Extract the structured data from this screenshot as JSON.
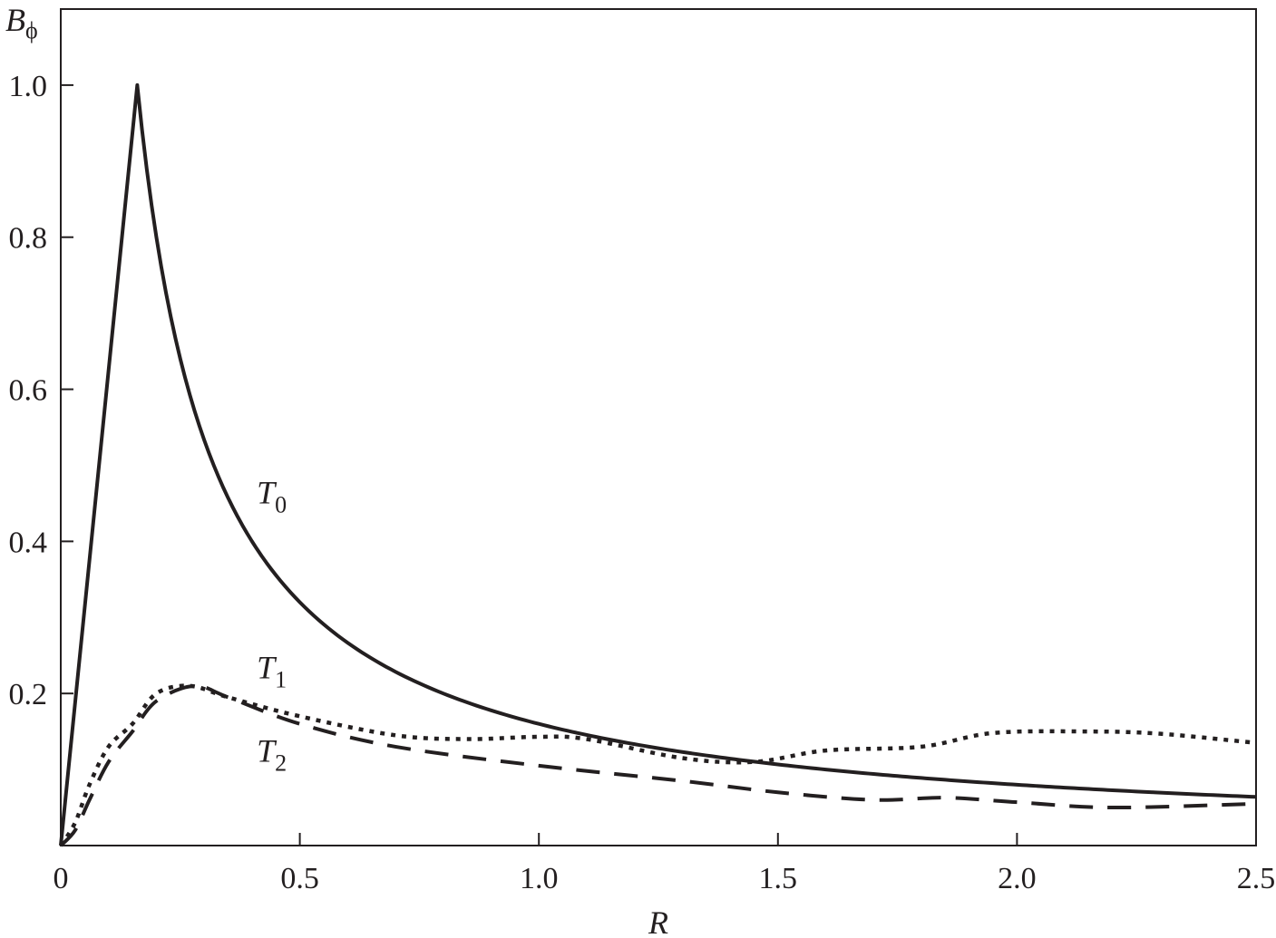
{
  "chart_data": {
    "type": "line",
    "title": "",
    "xlabel": "R",
    "ylabel": "B",
    "ylabel_subscript": "ϕ",
    "xlim": [
      0,
      2.5
    ],
    "ylim": [
      0,
      1.1
    ],
    "grid": false,
    "xticks": [
      0,
      0.5,
      1.0,
      1.5,
      2.0,
      2.5
    ],
    "xtick_labels": [
      "0",
      "0.5",
      "1.0",
      "1.5",
      "2.0",
      "2.5"
    ],
    "yticks": [
      0.2,
      0.4,
      0.6,
      0.8,
      1.0
    ],
    "ytick_labels": [
      "0.2",
      "0.4",
      "0.6",
      "0.8",
      "1.0"
    ],
    "series": [
      {
        "name": "T0",
        "label": "T",
        "subscript": "0",
        "style": "solid",
        "label_at": [
          0.41,
          0.45
        ],
        "x": [
          0,
          0.16,
          0.2,
          0.25,
          0.3,
          0.35,
          0.4,
          0.5,
          0.6,
          0.7,
          0.8,
          1.0,
          1.2,
          1.5,
          1.8,
          2.0,
          2.25,
          2.5
        ],
        "y": [
          0,
          1.0,
          0.8,
          0.64,
          0.533,
          0.457,
          0.4,
          0.32,
          0.267,
          0.229,
          0.2,
          0.16,
          0.133,
          0.107,
          0.089,
          0.08,
          0.071,
          0.064
        ]
      },
      {
        "name": "T1",
        "label": "T",
        "subscript": "1",
        "style": "dotted",
        "label_at": [
          0.41,
          0.22
        ],
        "x": [
          0,
          0.03,
          0.06,
          0.1,
          0.15,
          0.2,
          0.27,
          0.35,
          0.5,
          0.7,
          0.85,
          1.0,
          1.1,
          1.3,
          1.45,
          1.6,
          1.8,
          1.95,
          2.15,
          2.3,
          2.5
        ],
        "y": [
          0,
          0.03,
          0.08,
          0.13,
          0.16,
          0.2,
          0.21,
          0.195,
          0.17,
          0.145,
          0.14,
          0.143,
          0.14,
          0.115,
          0.11,
          0.125,
          0.13,
          0.148,
          0.15,
          0.147,
          0.135
        ]
      },
      {
        "name": "T2",
        "label": "T",
        "subscript": "2",
        "style": "dashed",
        "label_at": [
          0.41,
          0.11
        ],
        "x": [
          0,
          0.03,
          0.06,
          0.1,
          0.15,
          0.2,
          0.28,
          0.35,
          0.5,
          0.7,
          1.0,
          1.3,
          1.5,
          1.7,
          1.85,
          2.0,
          2.2,
          2.5
        ],
        "y": [
          0,
          0.02,
          0.06,
          0.11,
          0.15,
          0.19,
          0.21,
          0.195,
          0.16,
          0.13,
          0.105,
          0.085,
          0.07,
          0.06,
          0.063,
          0.057,
          0.05,
          0.055
        ]
      }
    ]
  }
}
